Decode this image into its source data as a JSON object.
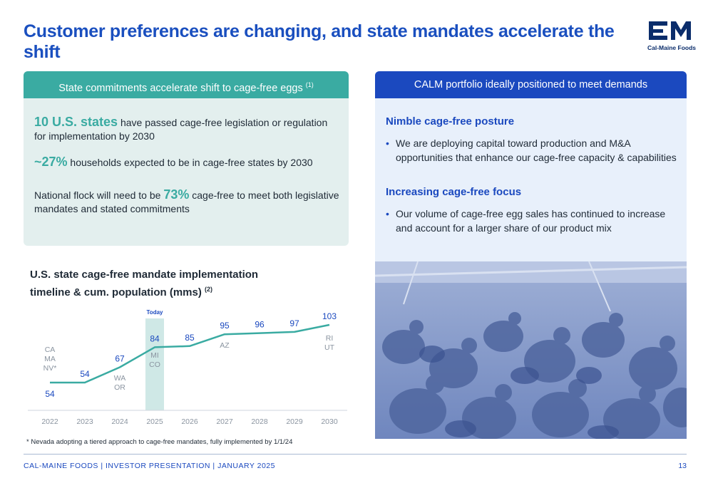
{
  "title": "Customer preferences are changing, and state mandates accelerate the shift",
  "logo": {
    "text": "Cal-Maine Foods"
  },
  "left_panel": {
    "header": "State commitments accelerate shift to cage-free eggs",
    "header_note": "(1)",
    "p1_highlight": "10 U.S. states",
    "p1_text": " have passed cage-free legislation or regulation for implementation by 2030",
    "p2_highlight": "~27%",
    "p2_text": " households expected to be in cage-free states by 2030",
    "p3_text_a": "National flock will need to be ",
    "p3_highlight": "73%",
    "p3_text_b": " cage-free to meet both legislative mandates and stated commitments"
  },
  "right_panel": {
    "header": "CALM portfolio ideally positioned to meet demands",
    "sections": [
      {
        "heading": "Nimble cage-free posture",
        "bullet": "We are deploying capital toward production and M&A opportunities that enhance our cage-free capacity & capabilities"
      },
      {
        "heading": "Increasing cage-free focus",
        "bullet": "Our volume of cage-free egg sales has continued to increase and account for a larger share of our product mix"
      }
    ],
    "bullet_char": "•"
  },
  "chart_title": "U.S. state cage-free mandate implementation timeline & cum. population (mms)",
  "chart_title_note": "(2)",
  "chart_data": {
    "type": "line",
    "x": [
      "2022",
      "2023",
      "2024",
      "2025",
      "2026",
      "2027",
      "2028",
      "2029",
      "2030"
    ],
    "points": [
      {
        "x": "2022",
        "y": 54
      },
      {
        "x": "2023",
        "y": 54
      },
      {
        "x": "2024",
        "y": 67
      },
      {
        "x": "2025",
        "y": 84
      },
      {
        "x": "2026",
        "y": 85
      },
      {
        "x": "2027",
        "y": 95
      },
      {
        "x": "2028",
        "y": 96
      },
      {
        "x": "2029",
        "y": 97
      },
      {
        "x": "2030",
        "y": 103
      }
    ],
    "data_labels": [
      "54",
      "54",
      "67",
      "84",
      "85",
      "95",
      "96",
      "97",
      "103"
    ],
    "state_annotations": [
      {
        "x": "2022",
        "text": "CA\nMA\nNV*"
      },
      {
        "x": "2024",
        "text": "WA\nOR"
      },
      {
        "x": "2025",
        "text": "MI\nCO"
      },
      {
        "x": "2027",
        "text": "AZ"
      },
      {
        "x": "2030",
        "text": "RI\nUT"
      }
    ],
    "highlight": {
      "x": "2025",
      "label": "Today"
    },
    "ylim": [
      40,
      110
    ],
    "grid": false,
    "line_color": "#3aaba2",
    "label_color": "#1b49bf",
    "highlight_color": "#cfe8e6"
  },
  "footnote": "* Nevada adopting a tiered approach to cage-free mandates, fully implemented by 1/1/24",
  "footer": "CAL-MAINE FOODS | INVESTOR PRESENTATION | JANUARY 2025",
  "page_number": "13"
}
